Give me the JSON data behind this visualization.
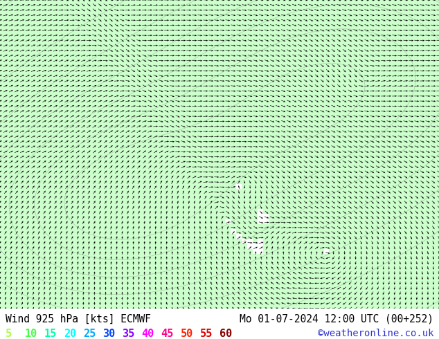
{
  "title_left": "Wind 925 hPa [kts] ECMWF",
  "title_right": "Mo 01-07-2024 12:00 UTC (00+252)",
  "credit": "©weatheronline.co.uk",
  "legend_values": [
    5,
    10,
    15,
    20,
    25,
    30,
    35,
    40,
    45,
    50,
    55,
    60
  ],
  "legend_colors": [
    "#aaff44",
    "#44ff44",
    "#00ffaa",
    "#00ffff",
    "#00aaff",
    "#0044ff",
    "#8800ff",
    "#ff00ff",
    "#ff0088",
    "#ff2200",
    "#dd0000",
    "#880000"
  ],
  "bg_color": "#ffffff",
  "map_bg": "#ffffff",
  "title_fontsize": 10.5,
  "legend_fontsize": 11,
  "credit_fontsize": 10,
  "fig_width": 6.34,
  "fig_height": 4.9,
  "dpi": 100,
  "wind_color_thresholds": [
    5,
    10,
    15,
    20,
    25,
    30,
    35,
    40,
    45,
    50,
    55,
    60
  ],
  "wind_colors": [
    "#ccffcc",
    "#aaff88",
    "#88ff44",
    "#44ffcc",
    "#00ffff",
    "#00ccff",
    "#0088ff",
    "#0044ff",
    "#8800ff",
    "#ff00ff",
    "#ff0088",
    "#ff2200"
  ]
}
